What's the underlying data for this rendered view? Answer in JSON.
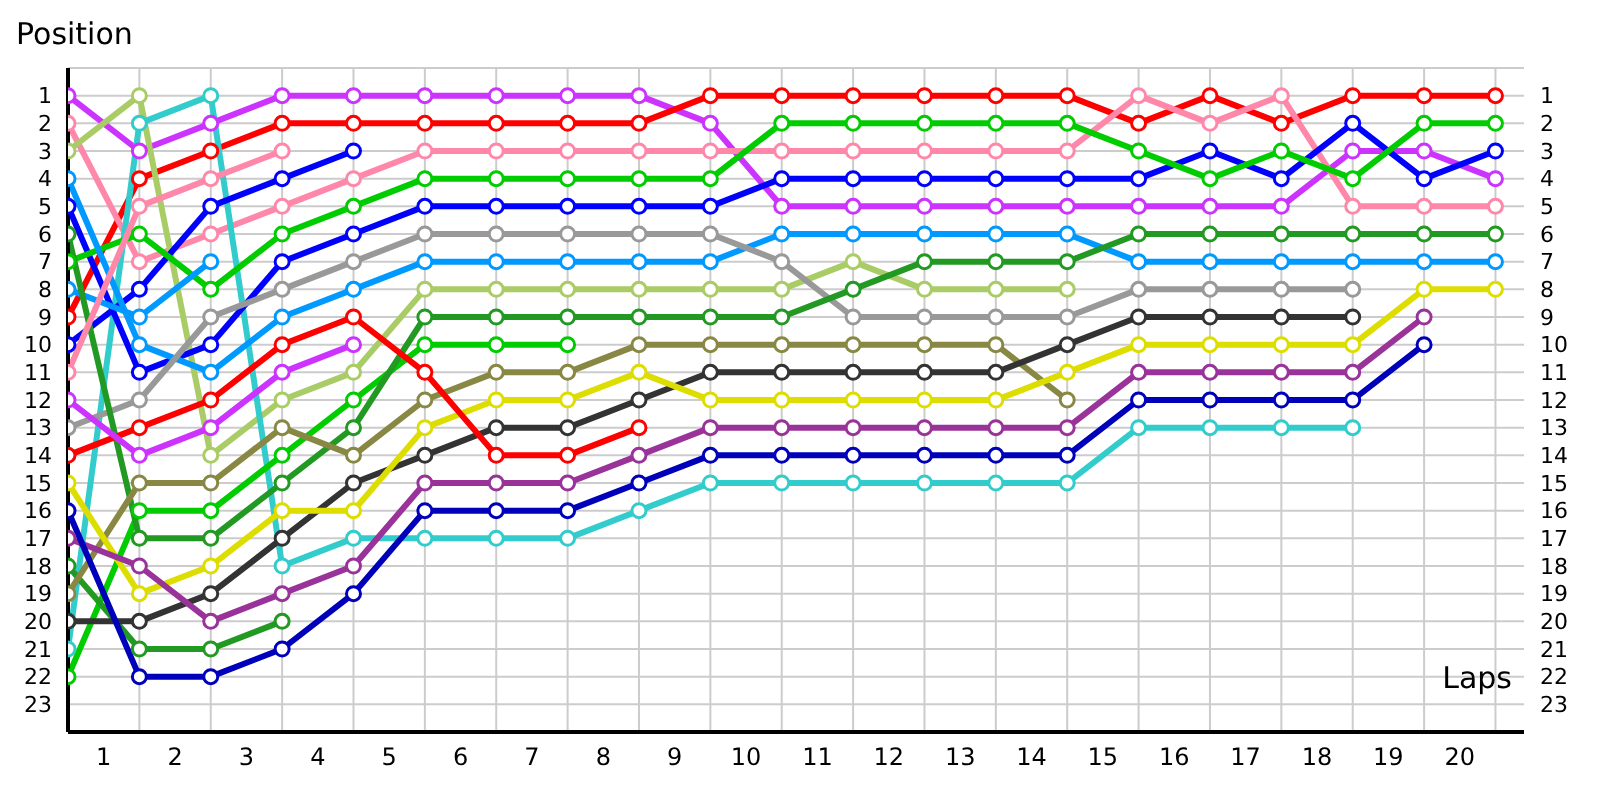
{
  "chart_data": {
    "type": "line",
    "ylabel": "Position",
    "xlabel": "Laps",
    "x": [
      0,
      1,
      2,
      3,
      4,
      5,
      6,
      7,
      8,
      9,
      10,
      11,
      12,
      13,
      14,
      15,
      16,
      17,
      18,
      19,
      20
    ],
    "xlim": [
      0,
      20.4
    ],
    "xticks": [
      {
        "value": 0.5,
        "label": "1"
      },
      {
        "value": 1.5,
        "label": "2"
      },
      {
        "value": 2.5,
        "label": "3"
      },
      {
        "value": 3.5,
        "label": "4"
      },
      {
        "value": 4.5,
        "label": "5"
      },
      {
        "value": 5.5,
        "label": "6"
      },
      {
        "value": 6.5,
        "label": "7"
      },
      {
        "value": 7.5,
        "label": "8"
      },
      {
        "value": 8.5,
        "label": "9"
      },
      {
        "value": 9.5,
        "label": "10"
      },
      {
        "value": 10.5,
        "label": "11"
      },
      {
        "value": 11.5,
        "label": "12"
      },
      {
        "value": 12.5,
        "label": "13"
      },
      {
        "value": 13.5,
        "label": "14"
      },
      {
        "value": 14.5,
        "label": "15"
      },
      {
        "value": 15.5,
        "label": "16"
      },
      {
        "value": 16.5,
        "label": "17"
      },
      {
        "value": 17.5,
        "label": "18"
      },
      {
        "value": 18.5,
        "label": "19"
      },
      {
        "value": 19.5,
        "label": "20"
      },
      {
        "value": 1,
        "label": null
      },
      {
        "value": 2,
        "label": null
      },
      {
        "value": 3,
        "label": null
      },
      {
        "value": 4,
        "label": null
      },
      {
        "value": 5,
        "label": null
      },
      {
        "value": 6,
        "label": null
      },
      {
        "value": 7,
        "label": null
      },
      {
        "value": 8,
        "label": null
      },
      {
        "value": 9,
        "label": null
      },
      {
        "value": 10,
        "label": null
      },
      {
        "value": 11,
        "label": null
      },
      {
        "value": 12,
        "label": null
      },
      {
        "value": 13,
        "label": null
      },
      {
        "value": 14,
        "label": null
      },
      {
        "value": 15,
        "label": null
      },
      {
        "value": 16,
        "label": null
      },
      {
        "value": 17,
        "label": null
      },
      {
        "value": 18,
        "label": null
      },
      {
        "value": 19,
        "label": null
      },
      {
        "value": 20,
        "label": null
      }
    ],
    "ylim": [
      24,
      0
    ],
    "yticks": [
      1,
      2,
      3,
      4,
      5,
      6,
      7,
      8,
      9,
      10,
      11,
      12,
      13,
      14,
      15,
      16,
      17,
      18,
      19,
      20,
      21,
      22,
      23
    ],
    "y2lim": [
      24,
      0
    ],
    "y2ticks": [
      1,
      2,
      3,
      4,
      5,
      6,
      7,
      8,
      9,
      10,
      11,
      12,
      13,
      14,
      15,
      16,
      17,
      18,
      19,
      20,
      21,
      22,
      23
    ],
    "grid": true,
    "marker": "circle",
    "line_style": "solid",
    "series": [
      {
        "color": "#cc33ff",
        "values": [
          1,
          3,
          2,
          1,
          1,
          1,
          1,
          1,
          1,
          2,
          5,
          5,
          5,
          5,
          5,
          5,
          5,
          5,
          3,
          3,
          4
        ]
      },
      {
        "color": "#ff0000",
        "values": [
          9,
          4,
          3,
          2,
          2,
          2,
          2,
          2,
          2,
          1,
          1,
          1,
          1,
          1,
          1,
          2,
          1,
          2,
          1,
          1,
          1
        ]
      },
      {
        "color": "#ff88aa",
        "values": [
          2,
          7,
          6,
          5,
          4,
          3,
          3,
          3,
          3,
          3,
          3,
          3,
          3,
          3,
          3,
          1,
          2,
          1,
          5,
          5,
          5
        ]
      },
      {
        "color": "#aacc66",
        "values": [
          3,
          1,
          14,
          12,
          11,
          8,
          8,
          8,
          8,
          8,
          8,
          7,
          8,
          8,
          8,
          null,
          null,
          null,
          null,
          null,
          null
        ]
      },
      {
        "color": "#33cccc",
        "values": [
          21,
          2,
          1,
          18,
          17,
          17,
          17,
          17,
          16,
          15,
          15,
          15,
          15,
          15,
          15,
          13,
          13,
          13,
          13,
          null,
          null
        ]
      },
      {
        "color": "#0000ff",
        "values": [
          5,
          11,
          10,
          7,
          6,
          5,
          5,
          5,
          5,
          5,
          4,
          4,
          4,
          4,
          4,
          4,
          3,
          4,
          2,
          4,
          3
        ]
      },
      {
        "color": "#0000ff",
        "values": [
          10,
          8,
          5,
          4,
          3,
          null,
          null,
          null,
          null,
          null,
          null,
          null,
          null,
          null,
          null,
          null,
          null,
          null,
          null,
          null,
          null
        ]
      },
      {
        "color": "#00cc00",
        "values": [
          7,
          6,
          8,
          6,
          5,
          4,
          4,
          4,
          4,
          4,
          2,
          2,
          2,
          2,
          2,
          3,
          4,
          3,
          4,
          2,
          2
        ]
      },
      {
        "color": "#00cc00",
        "values": [
          22,
          16,
          16,
          14,
          12,
          10,
          10,
          10,
          null,
          null,
          null,
          null,
          null,
          null,
          null,
          null,
          null,
          null,
          null,
          null,
          null
        ]
      },
      {
        "color": "#0099ff",
        "values": [
          4,
          10,
          11,
          9,
          8,
          7,
          7,
          7,
          7,
          7,
          6,
          6,
          6,
          6,
          6,
          7,
          7,
          7,
          7,
          7,
          7
        ]
      },
      {
        "color": "#0099ff",
        "values": [
          8,
          9,
          7,
          null,
          null,
          null,
          null,
          null,
          null,
          null,
          null,
          null,
          null,
          null,
          null,
          null,
          null,
          null,
          null,
          null,
          null
        ]
      },
      {
        "color": "#999999",
        "values": [
          13,
          12,
          9,
          8,
          7,
          6,
          6,
          6,
          6,
          6,
          7,
          9,
          9,
          9,
          9,
          8,
          8,
          8,
          8,
          null,
          null
        ]
      },
      {
        "color": "#229922",
        "values": [
          6,
          17,
          17,
          15,
          13,
          9,
          9,
          9,
          9,
          9,
          9,
          8,
          7,
          7,
          7,
          6,
          6,
          6,
          6,
          6,
          6
        ]
      },
      {
        "color": "#229922",
        "values": [
          18,
          21,
          21,
          20,
          null,
          null,
          null,
          null,
          null,
          null,
          null,
          null,
          null,
          null,
          null,
          null,
          null,
          null,
          null,
          null,
          null
        ]
      },
      {
        "color": "#888844",
        "values": [
          19,
          15,
          15,
          13,
          14,
          12,
          11,
          11,
          10,
          10,
          10,
          10,
          10,
          10,
          12,
          null,
          null,
          null,
          null,
          null,
          null
        ]
      },
      {
        "color": "#333333",
        "values": [
          20,
          20,
          19,
          17,
          15,
          14,
          13,
          13,
          12,
          11,
          11,
          11,
          11,
          11,
          10,
          9,
          9,
          9,
          9,
          null,
          null
        ]
      },
      {
        "color": "#dddd00",
        "values": [
          15,
          19,
          18,
          16,
          16,
          13,
          12,
          12,
          11,
          12,
          12,
          12,
          12,
          12,
          11,
          10,
          10,
          10,
          10,
          8,
          8
        ]
      },
      {
        "color": "#ff0000",
        "values": [
          14,
          13,
          12,
          10,
          9,
          11,
          14,
          14,
          13,
          null,
          null,
          null,
          null,
          null,
          null,
          null,
          null,
          null,
          null,
          null,
          null
        ]
      },
      {
        "color": "#cc33ff",
        "values": [
          12,
          14,
          13,
          11,
          10,
          null,
          null,
          null,
          null,
          null,
          null,
          null,
          null,
          null,
          null,
          null,
          null,
          null,
          null,
          null,
          null
        ]
      },
      {
        "color": "#993399",
        "values": [
          17,
          18,
          20,
          19,
          18,
          15,
          15,
          15,
          14,
          13,
          13,
          13,
          13,
          13,
          13,
          11,
          11,
          11,
          11,
          9,
          null
        ]
      },
      {
        "color": "#0000bb",
        "values": [
          16,
          22,
          22,
          21,
          19,
          16,
          16,
          16,
          15,
          14,
          14,
          14,
          14,
          14,
          14,
          12,
          12,
          12,
          12,
          10,
          null
        ]
      },
      {
        "color": "#ff88aa",
        "values": [
          11,
          5,
          4,
          3,
          null,
          null,
          null,
          null,
          null,
          null,
          null,
          null,
          null,
          null,
          null,
          null,
          null,
          null,
          null,
          null,
          null
        ]
      }
    ]
  }
}
